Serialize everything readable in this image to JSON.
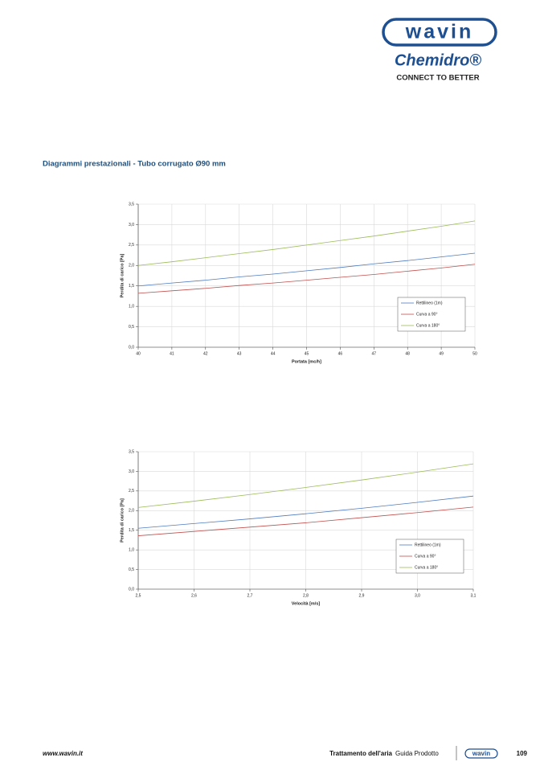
{
  "header": {
    "brand": "wavin",
    "sub_brand": "Chemidro®",
    "tagline": "CONNECT TO BETTER"
  },
  "section_title": "Diagrammi prestazionali - Tubo corrugato Ø90 mm",
  "chart_data": [
    {
      "type": "line",
      "xlabel": "Portata [mc/h]",
      "ylabel": "Perdita di carico [Pa]",
      "x": [
        40,
        41,
        42,
        43,
        44,
        45,
        46,
        47,
        48,
        49,
        50
      ],
      "xlim": [
        40,
        50
      ],
      "xticks": [
        40,
        41,
        42,
        43,
        44,
        45,
        46,
        47,
        48,
        49,
        50
      ],
      "ylim": [
        0,
        3.5
      ],
      "yticks": [
        {
          "value": 0,
          "label": "0,0"
        },
        {
          "value": 0.5,
          "label": "0,5"
        },
        {
          "value": 1,
          "label": "1,0"
        },
        {
          "value": 1.5,
          "label": "1,5"
        },
        {
          "value": 2,
          "label": "2,0"
        },
        {
          "value": 2.5,
          "label": "2,5"
        },
        {
          "value": 3,
          "label": "3,0"
        },
        {
          "value": 3.5,
          "label": "3,5"
        }
      ],
      "grid": true,
      "legend": "lower right",
      "series": [
        {
          "name": "Rettilineo (1m)",
          "color": "#4f7bbf",
          "values": [
            1.5,
            1.57,
            1.64,
            1.72,
            1.79,
            1.87,
            1.95,
            2.04,
            2.12,
            2.21,
            2.3
          ]
        },
        {
          "name": "Curva a 90°",
          "color": "#c0504d",
          "values": [
            1.32,
            1.38,
            1.44,
            1.51,
            1.57,
            1.64,
            1.71,
            1.78,
            1.86,
            1.94,
            2.03
          ]
        },
        {
          "name": "Curva a 180°",
          "color": "#9bbb59",
          "values": [
            2.0,
            2.09,
            2.19,
            2.29,
            2.39,
            2.5,
            2.61,
            2.72,
            2.84,
            2.96,
            3.09
          ]
        }
      ]
    },
    {
      "type": "line",
      "xlabel": "Velocità [m/s]",
      "ylabel": "Perdita di carico [Pa]",
      "x": [
        2.5,
        2.6,
        2.7,
        2.8,
        2.9,
        3.0,
        3.1
      ],
      "xlim": [
        2.5,
        3.1
      ],
      "xticks": [
        {
          "value": 2.5,
          "label": "2,5"
        },
        {
          "value": 2.6,
          "label": "2,6"
        },
        {
          "value": 2.7,
          "label": "2,7"
        },
        {
          "value": 2.8,
          "label": "2,8"
        },
        {
          "value": 2.9,
          "label": "2,9"
        },
        {
          "value": 3.0,
          "label": "3,0"
        },
        {
          "value": 3.1,
          "label": "3,1"
        }
      ],
      "ylim": [
        0,
        3.5
      ],
      "yticks": [
        {
          "value": 0,
          "label": "0,0"
        },
        {
          "value": 0.5,
          "label": "0,5"
        },
        {
          "value": 1,
          "label": "1,0"
        },
        {
          "value": 1.5,
          "label": "1,5"
        },
        {
          "value": 2,
          "label": "2,0"
        },
        {
          "value": 2.5,
          "label": "2,5"
        },
        {
          "value": 3,
          "label": "3,0"
        },
        {
          "value": 3.5,
          "label": "3,5"
        }
      ],
      "grid": true,
      "legend": "lower right",
      "series": [
        {
          "name": "Rettilineo (1m)",
          "color": "#4f7bbf",
          "values": [
            1.55,
            1.67,
            1.79,
            1.92,
            2.06,
            2.21,
            2.37
          ]
        },
        {
          "name": "Curva a 90°",
          "color": "#c0504d",
          "values": [
            1.36,
            1.47,
            1.58,
            1.69,
            1.82,
            1.95,
            2.09
          ]
        },
        {
          "name": "Curva a 180°",
          "color": "#9bbb59",
          "values": [
            2.08,
            2.24,
            2.41,
            2.59,
            2.78,
            2.98,
            3.19
          ]
        }
      ]
    }
  ],
  "footer": {
    "url": "www.wavin.it",
    "title": "Trattamento dell'aria",
    "subtitle": "Guida Prodotto",
    "brand": "wavin",
    "page": "109"
  }
}
